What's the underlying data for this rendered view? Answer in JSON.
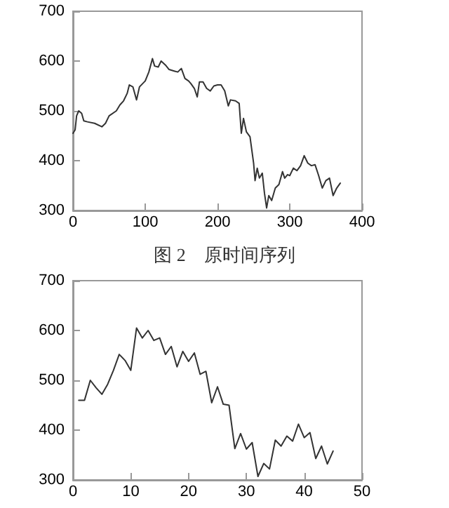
{
  "chart_data": [
    {
      "type": "line",
      "x": [
        0,
        3,
        5,
        8,
        12,
        15,
        20,
        30,
        40,
        45,
        50,
        60,
        65,
        70,
        75,
        78,
        83,
        88,
        92,
        100,
        105,
        110,
        113,
        118,
        122,
        128,
        133,
        140,
        145,
        150,
        155,
        160,
        163,
        168,
        172,
        175,
        180,
        185,
        190,
        195,
        200,
        205,
        210,
        215,
        218,
        225,
        230,
        233,
        236,
        240,
        245,
        250,
        252,
        255,
        258,
        262,
        265,
        268,
        271,
        275,
        280,
        285,
        290,
        293,
        297,
        300,
        305,
        310,
        315,
        320,
        325,
        330,
        335,
        340,
        345,
        350,
        355,
        360,
        365,
        370
      ],
      "series": [
        {
          "color": "#333333",
          "values": [
            455,
            462,
            490,
            500,
            495,
            480,
            478,
            475,
            468,
            475,
            490,
            500,
            512,
            520,
            535,
            552,
            548,
            522,
            548,
            560,
            578,
            605,
            590,
            588,
            600,
            592,
            583,
            580,
            578,
            585,
            565,
            560,
            555,
            545,
            528,
            558,
            558,
            545,
            540,
            550,
            552,
            552,
            540,
            510,
            522,
            520,
            515,
            455,
            485,
            458,
            448,
            395,
            360,
            385,
            365,
            375,
            335,
            305,
            330,
            320,
            345,
            352,
            378,
            365,
            372,
            370,
            385,
            380,
            390,
            410,
            395,
            390,
            392,
            370,
            345,
            360,
            365,
            330,
            345,
            355
          ]
        }
      ],
      "xlim": [
        0,
        400
      ],
      "xticks": [
        0,
        100,
        200,
        300,
        400
      ],
      "ylim": [
        300,
        700
      ],
      "yticks": [
        300,
        400,
        500,
        600,
        700
      ],
      "grid": false,
      "marker": "none",
      "line_style": "solid",
      "annotations": [
        "图 2　原时间序列"
      ]
    },
    {
      "type": "line",
      "x": [
        1,
        2,
        3,
        4,
        5,
        6,
        7,
        8,
        9,
        10,
        11,
        12,
        13,
        14,
        15,
        16,
        17,
        18,
        19,
        20,
        21,
        22,
        23,
        24,
        25,
        26,
        27,
        28,
        29,
        30,
        31,
        32,
        33,
        34,
        35,
        36,
        37,
        38,
        39,
        40,
        41,
        42,
        43,
        44,
        45
      ],
      "series": [
        {
          "color": "#333333",
          "values": [
            460,
            460,
            500,
            485,
            472,
            492,
            520,
            552,
            540,
            520,
            605,
            585,
            600,
            580,
            585,
            552,
            568,
            527,
            558,
            538,
            555,
            512,
            518,
            455,
            487,
            452,
            450,
            363,
            393,
            362,
            375,
            307,
            333,
            322,
            380,
            368,
            388,
            378,
            412,
            385,
            395,
            343,
            368,
            332,
            358
          ]
        }
      ],
      "xlim": [
        0,
        50
      ],
      "xticks": [
        0,
        10,
        20,
        30,
        40,
        50
      ],
      "ylim": [
        300,
        700
      ],
      "yticks": [
        300,
        400,
        500,
        600,
        700
      ],
      "grid": false,
      "marker": "none",
      "line_style": "solid"
    }
  ]
}
